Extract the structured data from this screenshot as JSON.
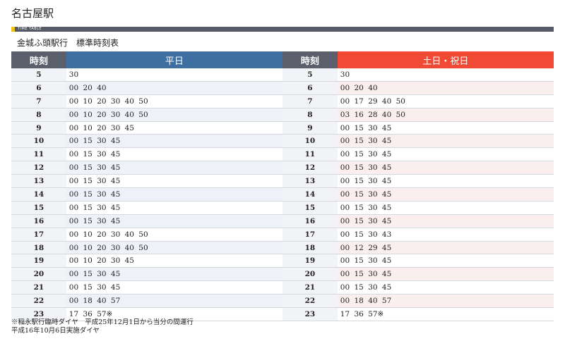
{
  "station": "名古屋駅",
  "banner_label": "TIME TABLE",
  "route_title": "金城ふ頭駅行　標準時刻表",
  "headers": {
    "hour": "時刻",
    "weekday": "平日",
    "holiday": "土日・祝日"
  },
  "colors": {
    "weekday_header": "#3e6fa0",
    "holiday_header": "#f04a35",
    "hour_header": "#5b5e6b",
    "accent_yellow": "#f2c21b"
  },
  "rows": [
    {
      "hour": "5",
      "weekday": "30",
      "holiday": "30"
    },
    {
      "hour": "6",
      "weekday": "00 20 40",
      "holiday": "00 20 40"
    },
    {
      "hour": "7",
      "weekday": "00 10 20 30 40 50",
      "holiday": "00 17 29 40 50"
    },
    {
      "hour": "8",
      "weekday": "00 10 20 30 40 50",
      "holiday": "03 16 28 40 50"
    },
    {
      "hour": "9",
      "weekday": "00 10 20 30 45",
      "holiday": "00 15 30 45"
    },
    {
      "hour": "10",
      "weekday": "00 15 30 45",
      "holiday": "00 15 30 45"
    },
    {
      "hour": "11",
      "weekday": "00 15 30 45",
      "holiday": "00 15 30 45"
    },
    {
      "hour": "12",
      "weekday": "00 15 30 45",
      "holiday": "00 15 30 45"
    },
    {
      "hour": "13",
      "weekday": "00 15 30 45",
      "holiday": "00 15 30 45"
    },
    {
      "hour": "14",
      "weekday": "00 15 30 45",
      "holiday": "00 15 30 45"
    },
    {
      "hour": "15",
      "weekday": "00 15 30 45",
      "holiday": "00 15 30 45"
    },
    {
      "hour": "16",
      "weekday": "00 15 30 45",
      "holiday": "00 15 30 45"
    },
    {
      "hour": "17",
      "weekday": "00 10 20 30 40 50",
      "holiday": "00 15 30 43"
    },
    {
      "hour": "18",
      "weekday": "00 10 20 30 40 50",
      "holiday": "00 12 29 45"
    },
    {
      "hour": "19",
      "weekday": "00 10 20 30 45",
      "holiday": "00 15 30 45"
    },
    {
      "hour": "20",
      "weekday": "00 15 30 45",
      "holiday": "00 15 30 45"
    },
    {
      "hour": "21",
      "weekday": "00 15 30 45",
      "holiday": "00 15 30 45"
    },
    {
      "hour": "22",
      "weekday": "00 18 40 57",
      "holiday": "00 18 40 57"
    },
    {
      "hour": "23",
      "weekday": "17 36 57※",
      "holiday": "17 36 57※"
    }
  ],
  "notes": [
    "※稲永駅行臨時ダイヤ　平成25年12月1日から当分の間運行",
    "平成16年10月6日実施ダイヤ"
  ]
}
